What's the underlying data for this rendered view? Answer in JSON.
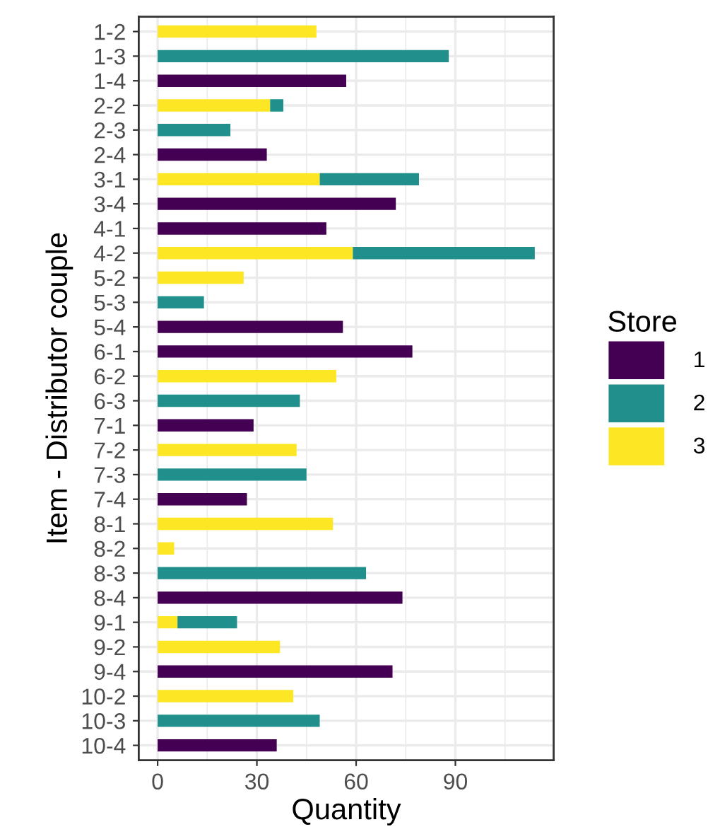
{
  "chart_data": {
    "type": "bar",
    "orientation": "horizontal",
    "stacked": true,
    "xlabel": "Quantity",
    "ylabel": "Item - Distributor couple",
    "legend_title": "Store",
    "legend": "right",
    "categories": [
      "1-2",
      "1-3",
      "1-4",
      "2-2",
      "2-3",
      "2-4",
      "3-1",
      "3-4",
      "4-1",
      "4-2",
      "5-2",
      "5-3",
      "5-4",
      "6-1",
      "6-2",
      "6-3",
      "7-1",
      "7-2",
      "7-3",
      "7-4",
      "8-1",
      "8-2",
      "8-3",
      "8-4",
      "9-1",
      "9-2",
      "9-4",
      "10-2",
      "10-3",
      "10-4"
    ],
    "series": [
      {
        "name": "3",
        "color": "#fde725",
        "values": [
          48,
          null,
          null,
          34,
          null,
          null,
          49,
          null,
          null,
          59,
          26,
          null,
          null,
          null,
          54,
          null,
          null,
          42,
          null,
          null,
          53,
          5,
          null,
          null,
          6,
          37,
          null,
          41,
          null,
          null
        ]
      },
      {
        "name": "2",
        "color": "#21908c",
        "values": [
          null,
          88,
          null,
          4,
          22,
          null,
          30,
          null,
          null,
          55,
          null,
          14,
          null,
          null,
          null,
          43,
          null,
          null,
          45,
          null,
          null,
          null,
          63,
          null,
          18,
          null,
          null,
          null,
          49,
          null
        ]
      },
      {
        "name": "1",
        "color": "#440154",
        "values": [
          null,
          null,
          57,
          null,
          null,
          33,
          null,
          72,
          51,
          null,
          null,
          null,
          56,
          77,
          null,
          null,
          29,
          null,
          null,
          27,
          null,
          null,
          null,
          74,
          null,
          null,
          71,
          null,
          null,
          36
        ]
      }
    ],
    "xlim": [
      -5.7,
      119.7
    ],
    "xticks": [
      0,
      30,
      60,
      90
    ],
    "grid": true
  }
}
